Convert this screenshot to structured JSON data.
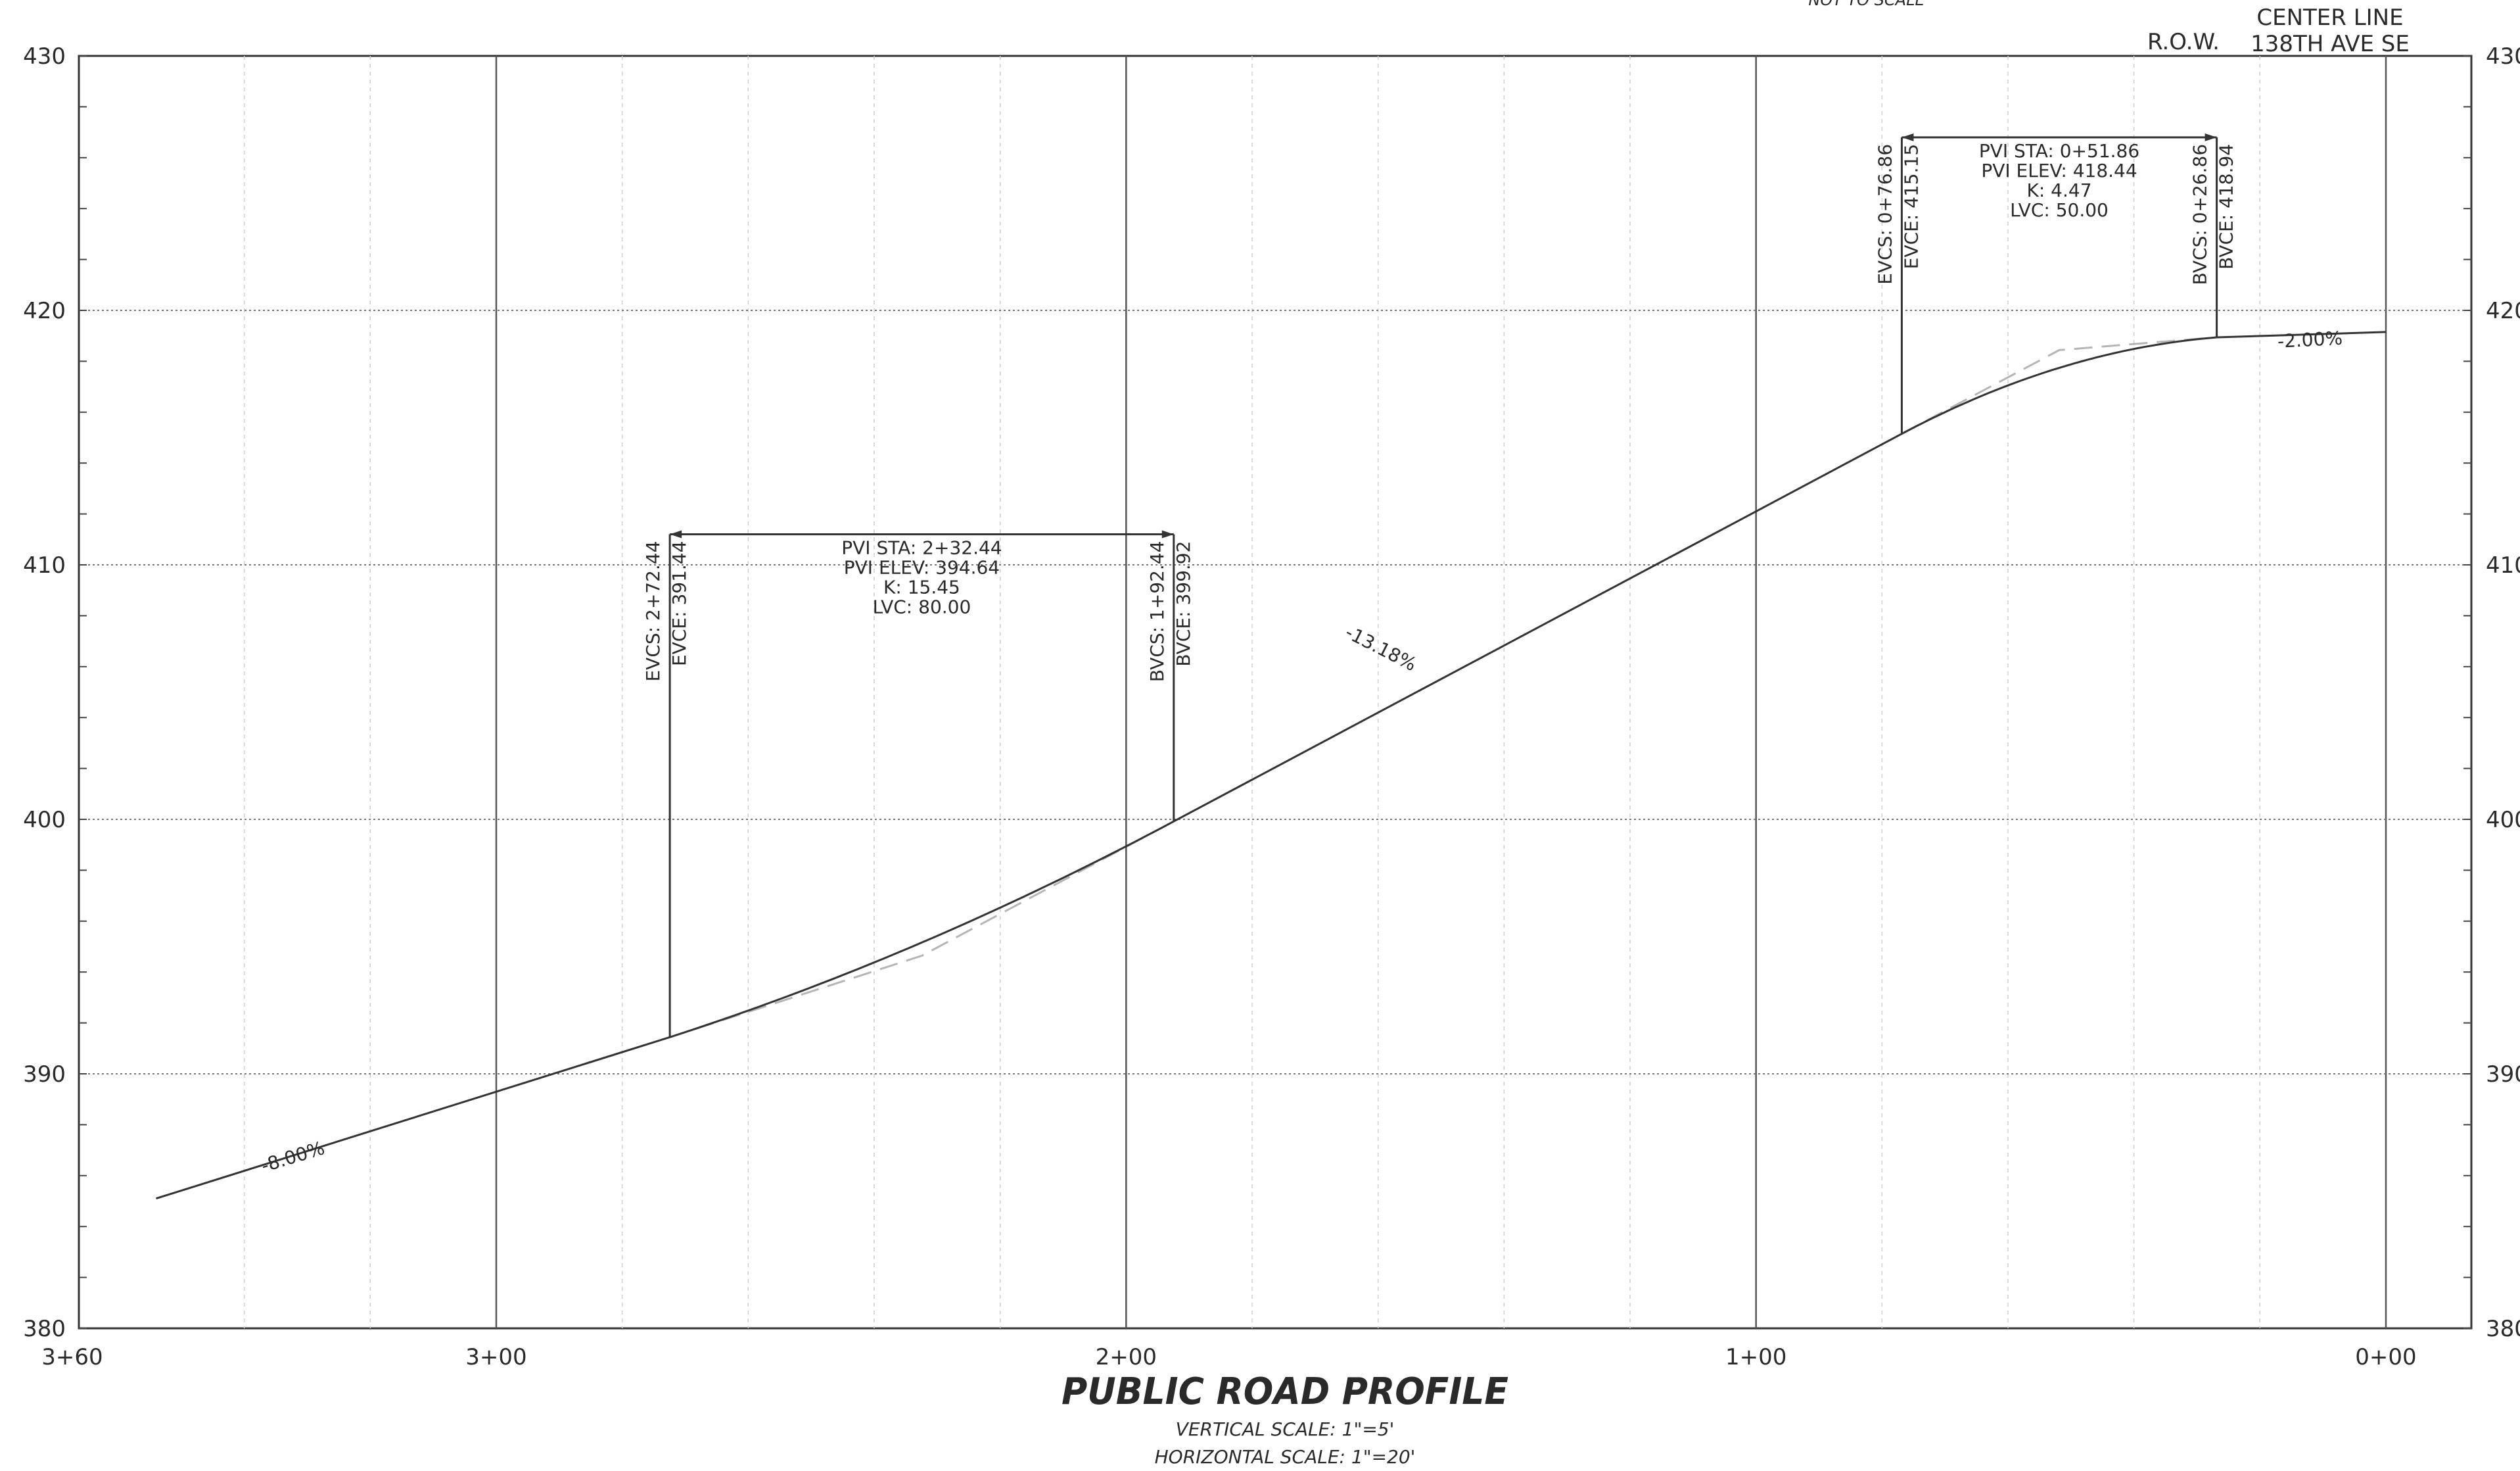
{
  "header": {
    "top_note": "NOT TO SCALE",
    "row_label": "R.O.W.",
    "centerline_label_1": "CENTER LINE",
    "centerline_label_2": "138TH AVE SE"
  },
  "title": {
    "main": "PUBLIC ROAD PROFILE",
    "vertical_scale": "VERTICAL SCALE: 1\"=5'",
    "horizontal_scale": "HORIZONTAL SCALE: 1\"=20'"
  },
  "chart_data": {
    "type": "line",
    "xlabel": "",
    "ylabel": "",
    "x_axis": "station (ft, 0+00 at right)",
    "xlim": [
      360,
      0
    ],
    "ylim": [
      380,
      430
    ],
    "grid": true,
    "y_ticks": [
      380,
      390,
      400,
      410,
      420,
      430
    ],
    "y_tick_labels_left": [
      "380",
      "390",
      "400",
      "410",
      "420",
      "430"
    ],
    "y_tick_labels_right": [
      "380",
      "390",
      "400",
      "410",
      "420",
      "430"
    ],
    "x_ticks": [
      360,
      300,
      200,
      100,
      0
    ],
    "x_tick_labels": [
      "3+60",
      "3+00",
      "2+00",
      "1+00",
      "0+00"
    ],
    "grades": [
      {
        "label": "-8.00%",
        "station": 332,
        "elev": 386.5
      },
      {
        "label": "-13.18%",
        "station": 160,
        "elev": 406.5
      },
      {
        "label": "-2.00%",
        "station": 12,
        "elev": 418.6
      }
    ],
    "tangents": [
      {
        "name": "segment-1",
        "points": [
          [
            354,
            385.1
          ],
          [
            272.44,
            391.44
          ]
        ]
      },
      {
        "name": "segment-2",
        "points": [
          [
            192.44,
            399.92
          ],
          [
            76.86,
            415.15
          ]
        ]
      },
      {
        "name": "segment-3",
        "points": [
          [
            26.86,
            418.94
          ],
          [
            0,
            419.15
          ]
        ]
      }
    ],
    "vertical_curves": [
      {
        "name": "curve-1",
        "pvi_sta_label": "PVI  STA:  2+32.44",
        "pvi_elev_label": "PVI  ELEV:  394.64",
        "k_label": "K:  15.45",
        "lvc_label": "LVC:  80.00",
        "evcs_label": "EVCS:  2+72.44",
        "evce_label": "EVCE:  391.44",
        "bvcs_label": "BVCS:  1+92.44",
        "bvce_label": "BVCE:  399.92",
        "evc_station": 272.44,
        "evc_elev": 391.44,
        "bvc_station": 192.44,
        "bvc_elev": 399.92,
        "pvi_station": 232.44,
        "pvi_elev": 394.64,
        "leader_top_elev": 411.2
      },
      {
        "name": "curve-2",
        "pvi_sta_label": "PVI  STA:  0+51.86",
        "pvi_elev_label": "PVI  ELEV:  418.44",
        "k_label": "K:  4.47",
        "lvc_label": "LVC:  50.00",
        "evcs_label": "EVCS:  0+76.86",
        "evce_label": "EVCE:  415.15",
        "bvcs_label": "BVCS:  0+26.86",
        "bvce_label": "BVCE:  418.94",
        "evc_station": 76.86,
        "evc_elev": 415.15,
        "bvc_station": 26.86,
        "bvc_elev": 418.94,
        "pvi_station": 51.86,
        "pvi_elev": 418.44,
        "leader_top_elev": 426.8
      }
    ]
  }
}
